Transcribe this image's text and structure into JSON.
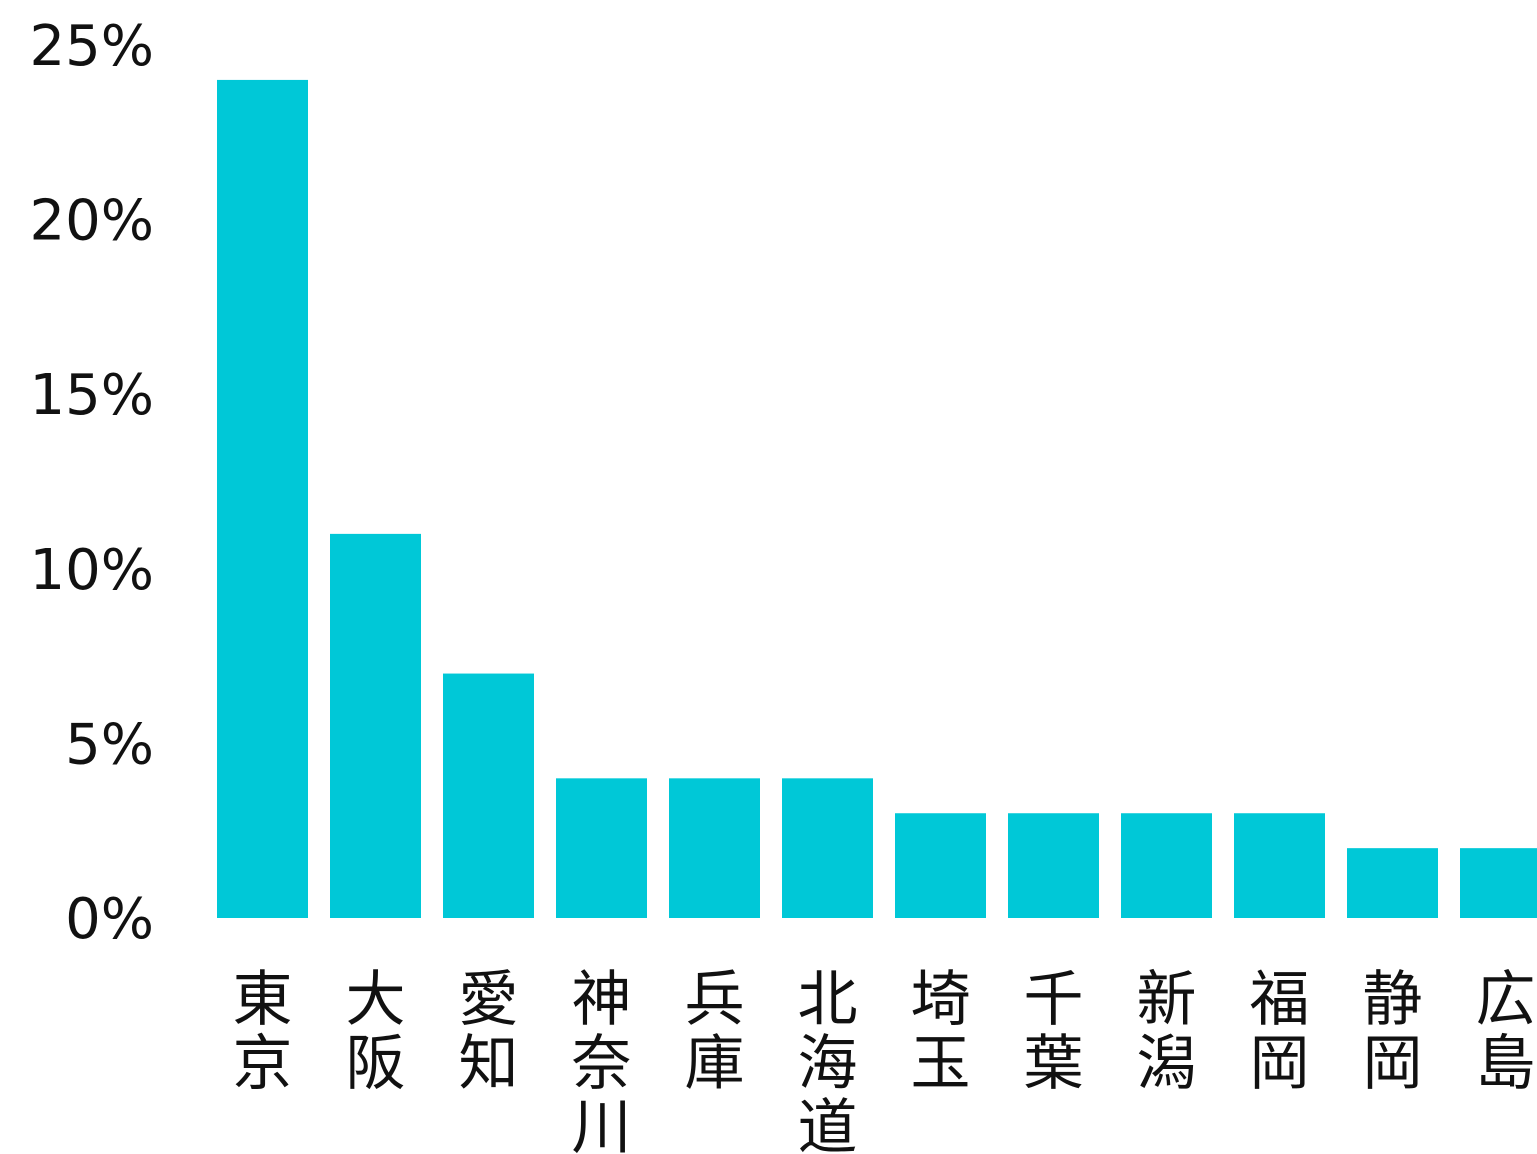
{
  "chart_data": {
    "type": "bar",
    "title": "",
    "xlabel": "",
    "ylabel": "",
    "categories": [
      "東京",
      "大阪",
      "愛知",
      "神奈川",
      "兵庫",
      "北海道",
      "埼玉",
      "千葉",
      "新潟",
      "福岡",
      "静岡",
      "広島"
    ],
    "values": [
      24,
      11,
      7,
      4,
      4,
      4,
      3,
      3,
      3,
      3,
      2,
      2
    ],
    "ylim": [
      0,
      25
    ],
    "yticks": [
      0,
      5,
      10,
      15,
      20,
      25
    ],
    "ytick_labels": [
      "0%",
      "5%",
      "10%",
      "15%",
      "20%",
      "25%"
    ],
    "bar_color": "#00c8d7",
    "grid": false,
    "legend": "none"
  }
}
